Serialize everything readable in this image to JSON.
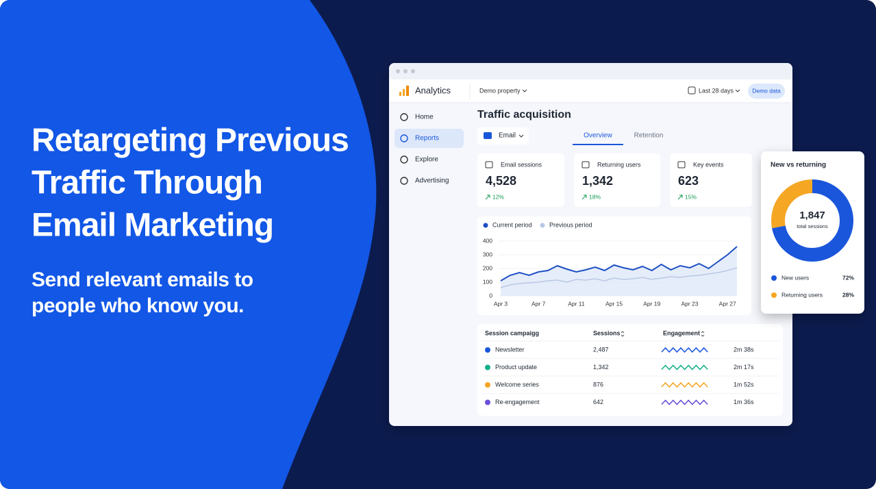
{
  "headline": {
    "title_lines": [
      "Retargeting Previous",
      "Traffic Through",
      "Email Marketing"
    ],
    "subtitle_lines": [
      "Send relevant emails to",
      "people who know you."
    ]
  },
  "app": {
    "brand": "Analytics",
    "property": "Demo property",
    "date_range": "Last 28 days",
    "badge": "Demo data",
    "nav": [
      "Home",
      "Reports",
      "Explore",
      "Advertising"
    ],
    "page_title": "Traffic acquisition",
    "filter": "Email",
    "tabs": [
      "Overview",
      "Retention"
    ],
    "kpis": [
      {
        "label": "Email sessions",
        "value": "4,528",
        "change": "12%"
      },
      {
        "label": "Returning users",
        "value": "1,342",
        "change": "18%"
      },
      {
        "label": "Key events",
        "value": "623",
        "change": "15%"
      }
    ],
    "table": {
      "columns": [
        "Session campaigg",
        "Sessions",
        "Engagement"
      ],
      "rows": [
        {
          "name": "Newsletter",
          "sessions": "2,487",
          "time": "2m 38s",
          "color": "#1a56db"
        },
        {
          "name": "Product update",
          "sessions": "1,342",
          "time": "2m 17s",
          "color": "#14b08a"
        },
        {
          "name": "Welcome series",
          "sessions": "876",
          "time": "1m 52s",
          "color": "#f5a623"
        },
        {
          "name": "Re-engagement",
          "sessions": "642",
          "time": "1m 36s",
          "color": "#6b4fd8"
        }
      ]
    }
  },
  "chart_data": [
    {
      "type": "line",
      "categories": [
        "Apr 3",
        null,
        null,
        null,
        "Apr 7",
        null,
        null,
        null,
        "Apr 11",
        null,
        null,
        null,
        "Apr 15",
        null,
        null,
        null,
        "Apr 19",
        null,
        null,
        null,
        "Apr 23",
        null,
        null,
        null,
        "Apr 27",
        null
      ],
      "series": [
        {
          "name": "Current period",
          "color": "#1d4fc4",
          "values": [
            110,
            150,
            170,
            150,
            175,
            185,
            220,
            195,
            175,
            190,
            210,
            185,
            225,
            205,
            190,
            215,
            185,
            230,
            190,
            220,
            205,
            235,
            200,
            250,
            300,
            360
          ]
        },
        {
          "name": "Previous period",
          "color": "#b9c8e6",
          "values": [
            60,
            80,
            90,
            95,
            100,
            110,
            115,
            100,
            120,
            115,
            125,
            110,
            130,
            120,
            125,
            135,
            120,
            130,
            140,
            135,
            145,
            150,
            160,
            170,
            185,
            205
          ]
        }
      ],
      "ylim": [
        0,
        400
      ],
      "yticks": [
        0,
        100,
        200,
        300,
        400
      ]
    },
    {
      "type": "pie",
      "title": "New vs returning",
      "center_value": "1,847",
      "center_label": "total sessions",
      "categories": [
        "New users",
        "Returning users"
      ],
      "values": [
        72,
        28
      ],
      "value_labels": [
        "72%",
        "28%"
      ],
      "colors": [
        "#1a56db",
        "#f5a623"
      ]
    }
  ]
}
